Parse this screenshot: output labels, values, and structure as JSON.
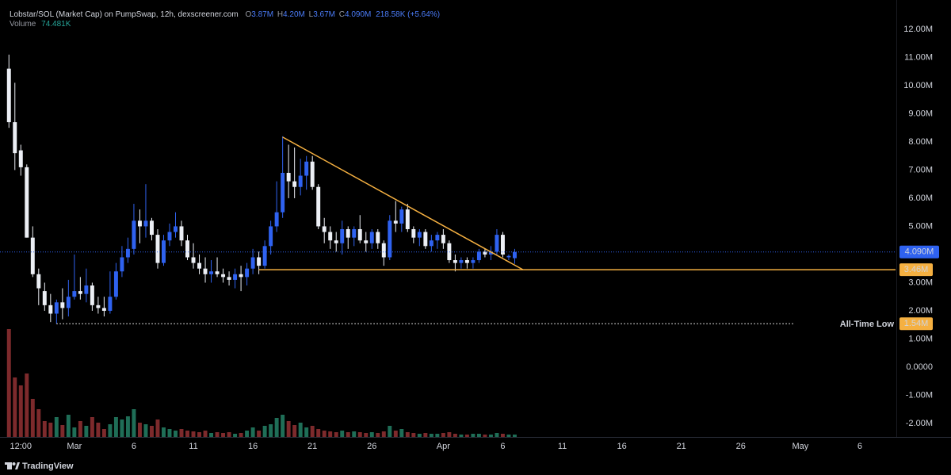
{
  "chart_data": {
    "type": "candlestick",
    "title": "Lobstar/SOL (Market Cap) on PumpSwap, 12h, dexscreener.com",
    "header_letters": [
      "O",
      "H",
      "L",
      "C"
    ],
    "header_value_labels": [
      "3.87M",
      "4.20M",
      "3.67M",
      "4.090M"
    ],
    "change_label": "218.58K (+5.64%)",
    "volume_name": "Volume",
    "volume_value_label": "74.481K",
    "up_color": "#2f62f0",
    "down_color": "#eceff5",
    "volume_up_color": "#1f6e57",
    "volume_down_color": "#7d2a2c",
    "grid": false,
    "open": [
      10600000,
      8700000,
      7700000,
      7100000,
      4600000,
      3300000,
      2700000,
      2200000,
      1900000,
      2300000,
      2100000,
      2500000,
      2700000,
      2600000,
      2900000,
      2200000,
      2100000,
      2000000,
      2500000,
      3400000,
      3900000,
      4200000,
      5200000,
      5000000,
      5200000,
      4700000,
      3700000,
      4500000,
      4800000,
      5000000,
      4500000,
      3900000,
      3700000,
      3500000,
      3300000,
      3400000,
      3300000,
      3200000,
      3100000,
      3300000,
      3200000,
      3500000,
      3900000,
      3600000,
      4300000,
      5000000,
      5500000,
      6900000,
      6600000,
      6400000,
      6800000,
      7300000,
      6400000,
      5000000,
      4800000,
      4500000,
      4400000,
      4900000,
      4600000,
      4900000,
      4500000,
      4400000,
      4800000,
      4400000,
      3900000,
      5200000,
      5100000,
      5600000,
      4900000,
      4600000,
      4800000,
      4300000,
      4500000,
      4700000,
      4400000,
      3800000,
      3700000,
      3800000,
      3700000,
      3800000,
      4100000,
      4000000,
      4100000,
      4700000,
      3900000,
      3870000
    ],
    "high": [
      11100000,
      10100000,
      7900000,
      7200000,
      5000000,
      3500000,
      3000000,
      2600000,
      2400000,
      2800000,
      3100000,
      4000000,
      3200000,
      3500000,
      3000000,
      2500000,
      2500000,
      3400000,
      3700000,
      4300000,
      4600000,
      5800000,
      5600000,
      6500000,
      5300000,
      4900000,
      4700000,
      5100000,
      5500000,
      5200000,
      4700000,
      4400000,
      4000000,
      3900000,
      3800000,
      3900000,
      3500000,
      3400000,
      3500000,
      3600000,
      3700000,
      4200000,
      4100000,
      4500000,
      5200000,
      6600000,
      8200000,
      7900000,
      7800000,
      7400000,
      7500000,
      7500000,
      6500000,
      5300000,
      5000000,
      4800000,
      5200000,
      5000000,
      5000000,
      5400000,
      4800000,
      4900000,
      4900000,
      4500000,
      5400000,
      5900000,
      5700000,
      5800000,
      5000000,
      4900000,
      4900000,
      4700000,
      4800000,
      4900000,
      4500000,
      4000000,
      3900000,
      3900000,
      3900000,
      4200000,
      4200000,
      4300000,
      4900000,
      4800000,
      4000000,
      4200000
    ],
    "low": [
      8500000,
      7000000,
      6800000,
      4600000,
      3200000,
      2200000,
      2000000,
      1600000,
      1540000,
      1700000,
      1800000,
      2400000,
      2400000,
      2300000,
      2000000,
      1900000,
      1800000,
      1900000,
      2400000,
      3200000,
      3700000,
      4000000,
      4400000,
      4600000,
      4500000,
      3500000,
      3600000,
      4300000,
      4600000,
      4300000,
      3800000,
      3500000,
      3300000,
      3000000,
      3000000,
      3200000,
      3000000,
      2900000,
      2800000,
      2700000,
      2900000,
      3300000,
      3300000,
      3500000,
      4000000,
      4800000,
      5300000,
      6000000,
      6000000,
      6100000,
      6300000,
      6300000,
      4900000,
      4400000,
      4200000,
      4100000,
      4000000,
      4200000,
      4300000,
      4400000,
      4100000,
      4200000,
      4200000,
      3600000,
      3800000,
      4800000,
      4800000,
      4800000,
      4400000,
      4300000,
      4200000,
      4100000,
      4200000,
      4200000,
      3700000,
      3400000,
      3500000,
      3500000,
      3500000,
      3700000,
      3900000,
      3800000,
      4000000,
      3900000,
      3800000,
      3670000
    ],
    "close": [
      8700000,
      7600000,
      7100000,
      4600000,
      3300000,
      2800000,
      2200000,
      1900000,
      2300000,
      2100000,
      2500000,
      2700000,
      2600000,
      2900000,
      2200000,
      2100000,
      2000000,
      2500000,
      3400000,
      3900000,
      4200000,
      5200000,
      5000000,
      5200000,
      4700000,
      3700000,
      4500000,
      4800000,
      5000000,
      4500000,
      3900000,
      3700000,
      3500000,
      3300000,
      3400000,
      3300000,
      3200000,
      3100000,
      3300000,
      3200000,
      3500000,
      3900000,
      3600000,
      4300000,
      5000000,
      5500000,
      6900000,
      6600000,
      6400000,
      6800000,
      7300000,
      6400000,
      5000000,
      4800000,
      4500000,
      4400000,
      4900000,
      4600000,
      4900000,
      4500000,
      4400000,
      4800000,
      4400000,
      3900000,
      5200000,
      5100000,
      5600000,
      4900000,
      4600000,
      4800000,
      4300000,
      4500000,
      4700000,
      4400000,
      3800000,
      3700000,
      3800000,
      3700000,
      3800000,
      4100000,
      4000000,
      4100000,
      4700000,
      4000000,
      3950000,
      4090000
    ],
    "volume": [
      3400000,
      1875000,
      1625000,
      2000000,
      1200000,
      875000,
      500000,
      450000,
      625000,
      375000,
      700000,
      300000,
      500000,
      350000,
      625000,
      450000,
      250000,
      400000,
      625000,
      550000,
      650000,
      875000,
      450000,
      400000,
      350000,
      550000,
      300000,
      250000,
      200000,
      250000,
      200000,
      175000,
      150000,
      200000,
      125000,
      150000,
      125000,
      150000,
      100000,
      125000,
      200000,
      300000,
      200000,
      350000,
      400000,
      600000,
      700000,
      500000,
      375000,
      450000,
      300000,
      350000,
      250000,
      200000,
      175000,
      150000,
      200000,
      150000,
      175000,
      150000,
      125000,
      150000,
      125000,
      175000,
      350000,
      200000,
      250000,
      150000,
      125000,
      100000,
      125000,
      100000,
      100000,
      125000,
      150000,
      100000,
      75000,
      75000,
      100000,
      100000,
      75000,
      75000,
      125000,
      100000,
      75000,
      74481
    ],
    "xlim": [
      -1.5,
      149
    ],
    "xticks": [
      {
        "value": 2,
        "label": "12:00"
      },
      {
        "value": 11,
        "label": "Mar"
      },
      {
        "value": 21,
        "label": "6"
      },
      {
        "value": 31,
        "label": "11"
      },
      {
        "value": 41,
        "label": "16"
      },
      {
        "value": 51,
        "label": "21"
      },
      {
        "value": 61,
        "label": "26"
      },
      {
        "value": 73,
        "label": "Apr"
      },
      {
        "value": 83,
        "label": "6"
      },
      {
        "value": 93,
        "label": "11"
      },
      {
        "value": 103,
        "label": "16"
      },
      {
        "value": 113,
        "label": "21"
      },
      {
        "value": 123,
        "label": "26"
      },
      {
        "value": 133,
        "label": "May"
      },
      {
        "value": 143,
        "label": "6"
      }
    ],
    "ylim": [
      -2480000,
      13040000
    ],
    "yticks": [
      {
        "value": 12000000,
        "label": "12.00M"
      },
      {
        "value": 11000000,
        "label": "11.00M"
      },
      {
        "value": 10000000,
        "label": "10.00M"
      },
      {
        "value": 9000000,
        "label": "9.00M"
      },
      {
        "value": 8000000,
        "label": "8.00M"
      },
      {
        "value": 7000000,
        "label": "7.00M"
      },
      {
        "value": 6000000,
        "label": "6.00M"
      },
      {
        "value": 5000000,
        "label": "5.00M"
      },
      {
        "value": 3000000,
        "label": "3.00M"
      },
      {
        "value": 2000000,
        "label": "2.00M"
      },
      {
        "value": 1000000,
        "label": "1.00M"
      },
      {
        "value": 0,
        "label": "0.0000"
      },
      {
        "value": -1000000,
        "label": "-1.00M"
      },
      {
        "value": -2000000,
        "label": "-2.00M"
      }
    ],
    "last_price_label": "4.090M",
    "support_line": {
      "value": 3460000,
      "label": "3.46M",
      "start": 42,
      "color": "#f5b041"
    },
    "all_time_low": {
      "value": 1540000,
      "label": "1.54M",
      "text": "All-Time Low",
      "start": 8,
      "end": 132,
      "color": "#f5b041"
    },
    "trendline": {
      "x": [
        46,
        86.4
      ],
      "y": [
        8170000,
        3460000
      ],
      "color": "#f5b041"
    }
  },
  "footer": {
    "brand": "TradingView"
  }
}
